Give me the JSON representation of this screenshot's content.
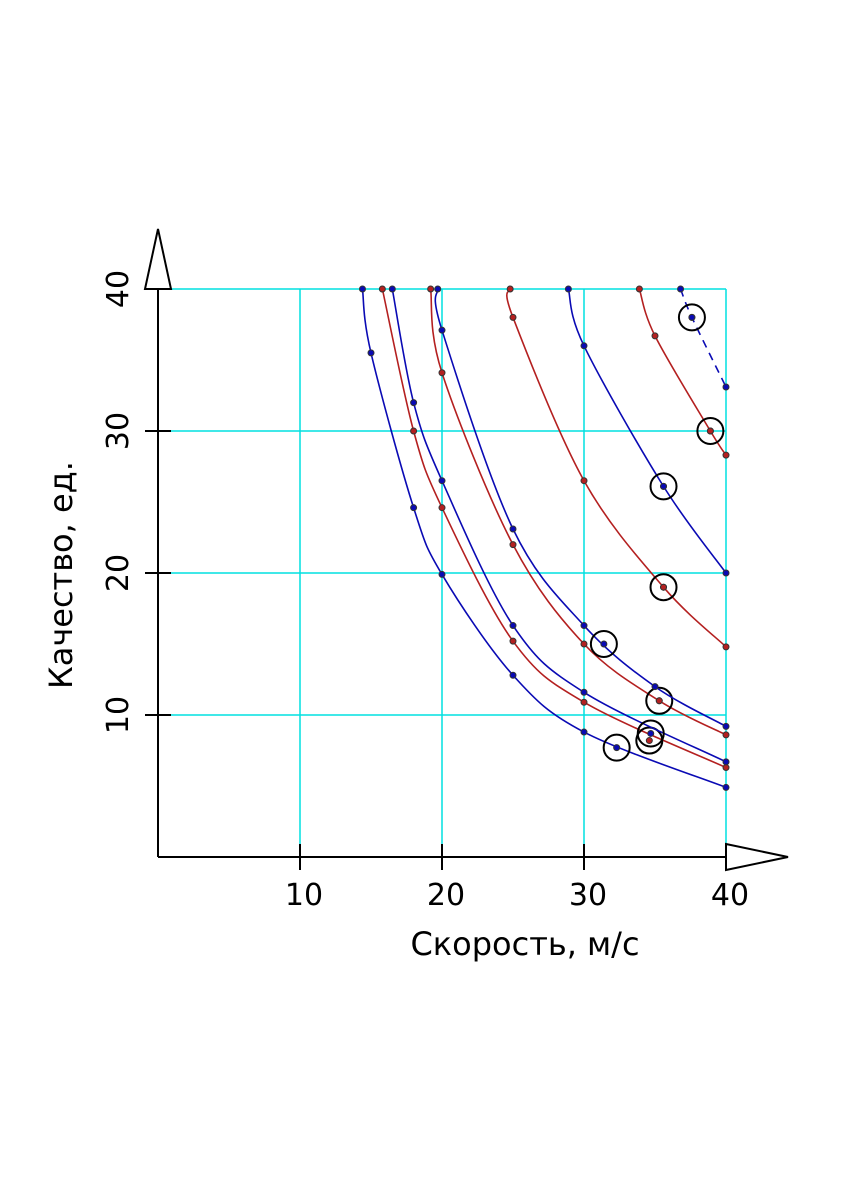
{
  "chart_data": {
    "type": "line",
    "x_label": "Скорость, м/с",
    "y_label": "Качество, ед.",
    "xlim": [
      0,
      40
    ],
    "ylim": [
      0,
      40
    ],
    "xticks": [
      10,
      20,
      30,
      40
    ],
    "yticks": [
      10,
      20,
      30,
      40
    ],
    "grid": true,
    "grid_color": "#00e0e0",
    "series": [
      {
        "color": "#0a0ab4",
        "x": [
          14.4,
          15,
          18,
          20,
          25,
          30,
          40
        ],
        "values": [
          40,
          35.5,
          24.6,
          19.9,
          12.8,
          8.8,
          4.9
        ],
        "optimum": {
          "x": 32.3,
          "y": 7.7
        }
      },
      {
        "color": "#b42020",
        "x": [
          15.8,
          18,
          20,
          25,
          30,
          40
        ],
        "values": [
          40,
          30,
          24.6,
          15.2,
          10.9,
          6.3
        ],
        "optimum": {
          "x": 34.6,
          "y": 8.2
        }
      },
      {
        "color": "#0a0ab4",
        "x": [
          16.5,
          18,
          20,
          25,
          30,
          40
        ],
        "values": [
          40,
          32,
          26.5,
          16.3,
          11.6,
          6.7
        ],
        "optimum": {
          "x": 34.7,
          "y": 8.7
        }
      },
      {
        "color": "#b42020",
        "x": [
          19.2,
          20,
          25,
          30,
          35.3,
          40
        ],
        "values": [
          40,
          34.1,
          22,
          15,
          11,
          8.6
        ],
        "optimum": {
          "x": 35.3,
          "y": 11
        }
      },
      {
        "color": "#0a0ab4",
        "x": [
          19.7,
          20,
          25,
          30,
          35,
          40
        ],
        "values": [
          40,
          37.1,
          23.1,
          16.3,
          12,
          9.2
        ],
        "optimum": {
          "x": 31.4,
          "y": 15
        }
      },
      {
        "color": "#b42020",
        "x": [
          24.8,
          25,
          30,
          35.6,
          40
        ],
        "values": [
          40,
          38,
          26.5,
          19,
          14.8
        ],
        "optimum": {
          "x": 35.6,
          "y": 19
        }
      },
      {
        "color": "#0a0ab4",
        "x": [
          28.9,
          30,
          35.6,
          40
        ],
        "values": [
          40,
          36,
          26.1,
          20
        ],
        "optimum": {
          "x": 35.6,
          "y": 26.1
        }
      },
      {
        "color": "#b42020",
        "x": [
          33.9,
          35,
          38.9,
          40
        ],
        "values": [
          40,
          36.7,
          30,
          28.3
        ],
        "optimum": {
          "x": 38.9,
          "y": 30
        }
      },
      {
        "color": "#0a0ab4",
        "dashed": true,
        "x": [
          36.8,
          37.6,
          40
        ],
        "values": [
          40,
          38,
          33.1
        ],
        "optimum": {
          "x": 37.6,
          "y": 38
        }
      }
    ]
  }
}
